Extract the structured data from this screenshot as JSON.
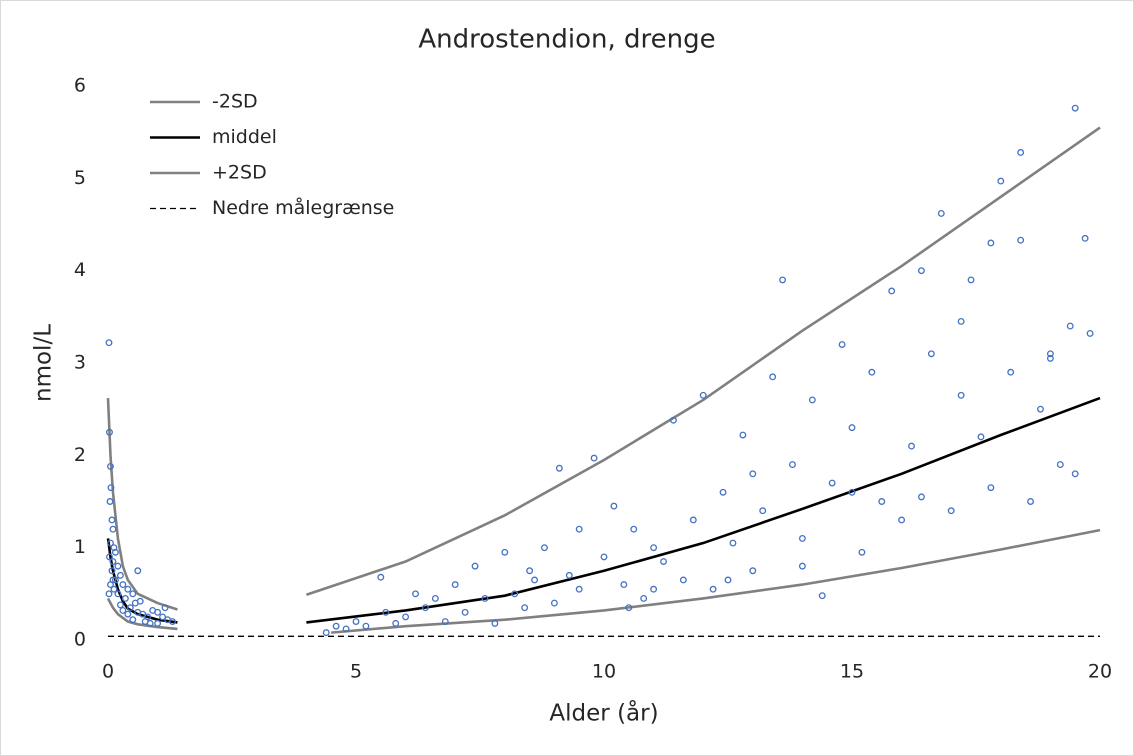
{
  "chart_data": {
    "type": "scatter",
    "title": "Androstendion, drenge",
    "x_label": "Alder (år)",
    "y_label": "nmol/L",
    "xlim": [
      0,
      20
    ],
    "xticks": [
      0,
      5,
      10,
      15,
      20
    ],
    "ylim": [
      0,
      6
    ],
    "yticks": [
      0,
      1,
      2,
      3,
      4,
      5,
      6
    ],
    "grid": false,
    "legend": "upper left",
    "points": {
      "color": "#4472c4",
      "x": [
        0.02,
        0.03,
        0.05,
        0.06,
        0.04,
        0.08,
        0.1,
        0.05,
        0.12,
        0.15,
        0.03,
        0.1,
        0.2,
        0.08,
        0.25,
        0.15,
        0.05,
        0.3,
        0.12,
        0.4,
        0.2,
        0.35,
        0.5,
        0.6,
        0.55,
        0.45,
        0.3,
        0.6,
        0.7,
        0.8,
        0.5,
        0.9,
        1.0,
        1.1,
        1.2,
        0.75,
        1.0,
        1.3,
        0.4,
        0.65,
        0.1,
        0.02,
        0.25,
        0.85,
        1.15,
        4.4,
        4.6,
        4.8,
        5.0,
        5.2,
        5.5,
        5.6,
        5.8,
        6.0,
        6.2,
        6.4,
        6.6,
        6.8,
        7.0,
        7.2,
        7.4,
        7.6,
        7.8,
        8.0,
        8.2,
        8.4,
        8.6,
        8.8,
        9.0,
        9.1,
        9.3,
        9.5,
        9.8,
        10.0,
        10.2,
        10.4,
        10.6,
        10.8,
        11.0,
        11.2,
        11.4,
        11.6,
        11.8,
        12.0,
        12.2,
        12.4,
        12.6,
        12.8,
        13.0,
        13.2,
        13.4,
        13.6,
        13.8,
        14.0,
        14.2,
        14.4,
        14.6,
        14.8,
        15.0,
        15.2,
        15.4,
        15.6,
        15.8,
        16.0,
        16.2,
        16.4,
        16.6,
        16.8,
        17.0,
        17.2,
        17.4,
        17.6,
        17.8,
        18.0,
        18.2,
        18.4,
        18.6,
        18.8,
        19.0,
        19.2,
        19.4,
        19.5,
        19.7,
        19.8,
        19.5,
        16.4,
        17.2,
        15.0,
        13.0,
        11.0,
        9.5,
        8.5,
        10.5,
        12.5,
        14.0,
        17.8,
        18.4,
        19.0
      ],
      "values": [
        3.22,
        2.25,
        1.88,
        1.65,
        1.5,
        1.3,
        1.2,
        1.05,
        1.0,
        0.95,
        0.9,
        0.85,
        0.8,
        0.75,
        0.7,
        0.65,
        0.6,
        0.6,
        0.55,
        0.55,
        0.5,
        0.45,
        0.5,
        0.75,
        0.4,
        0.35,
        0.32,
        0.3,
        0.28,
        0.25,
        0.22,
        0.32,
        0.3,
        0.25,
        0.22,
        0.2,
        0.18,
        0.2,
        0.28,
        0.42,
        0.65,
        0.5,
        0.38,
        0.18,
        0.35,
        0.08,
        0.15,
        0.12,
        0.2,
        0.15,
        0.68,
        0.3,
        0.18,
        0.25,
        0.5,
        0.35,
        0.45,
        0.2,
        0.6,
        0.3,
        0.8,
        0.45,
        0.18,
        0.95,
        0.5,
        0.35,
        0.65,
        1.0,
        0.4,
        1.86,
        0.7,
        0.55,
        1.97,
        0.9,
        1.45,
        0.6,
        1.2,
        0.45,
        1.0,
        0.85,
        2.38,
        0.65,
        1.3,
        2.65,
        0.55,
        1.6,
        1.05,
        2.22,
        0.75,
        1.4,
        2.85,
        3.9,
        1.9,
        1.1,
        2.6,
        0.48,
        1.7,
        3.2,
        2.3,
        0.95,
        2.9,
        1.5,
        3.78,
        1.3,
        2.1,
        1.55,
        3.1,
        4.62,
        1.4,
        2.65,
        3.9,
        2.2,
        1.65,
        4.97,
        2.9,
        5.28,
        1.5,
        2.5,
        3.1,
        1.9,
        3.4,
        5.76,
        4.35,
        3.32,
        1.8,
        4.0,
        3.45,
        1.6,
        1.8,
        0.55,
        1.2,
        0.75,
        0.35,
        0.65,
        0.8,
        4.3,
        4.33,
        3.05
      ]
    },
    "series": [
      {
        "name": "-2SD",
        "color": "#808080",
        "dashed": false,
        "x": [
          0,
          0.1,
          0.2,
          0.4,
          0.6,
          1.0,
          1.4,
          null,
          4.5,
          6,
          8,
          10,
          12,
          14,
          16,
          18,
          20
        ],
        "values": [
          0.45,
          0.35,
          0.28,
          0.2,
          0.17,
          0.14,
          0.12,
          null,
          0.08,
          0.15,
          0.22,
          0.32,
          0.45,
          0.6,
          0.78,
          0.98,
          1.19
        ]
      },
      {
        "name": "middel",
        "color": "#000000",
        "dashed": false,
        "x": [
          0,
          0.05,
          0.1,
          0.2,
          0.3,
          0.4,
          0.6,
          0.8,
          1.0,
          1.4,
          null,
          4,
          6,
          8,
          10,
          12,
          14,
          16,
          18,
          20
        ],
        "values": [
          1.1,
          0.9,
          0.75,
          0.55,
          0.42,
          0.34,
          0.28,
          0.25,
          0.22,
          0.19,
          null,
          0.19,
          0.32,
          0.48,
          0.75,
          1.05,
          1.42,
          1.8,
          2.22,
          2.62
        ]
      },
      {
        "name": "+2SD",
        "color": "#808080",
        "dashed": false,
        "x": [
          0,
          0.05,
          0.1,
          0.2,
          0.3,
          0.4,
          0.6,
          0.8,
          1.0,
          1.4,
          null,
          4,
          6,
          8,
          10,
          12,
          14,
          16,
          18,
          20
        ],
        "values": [
          2.62,
          2.0,
          1.6,
          1.1,
          0.8,
          0.65,
          0.5,
          0.45,
          0.4,
          0.33,
          null,
          0.49,
          0.85,
          1.35,
          1.95,
          2.6,
          3.35,
          4.05,
          4.8,
          5.55
        ]
      },
      {
        "name": "Nedre målegrænse",
        "color": "#000000",
        "dashed": true,
        "x": [
          0,
          20
        ],
        "values": [
          0.04,
          0.04
        ]
      }
    ]
  }
}
